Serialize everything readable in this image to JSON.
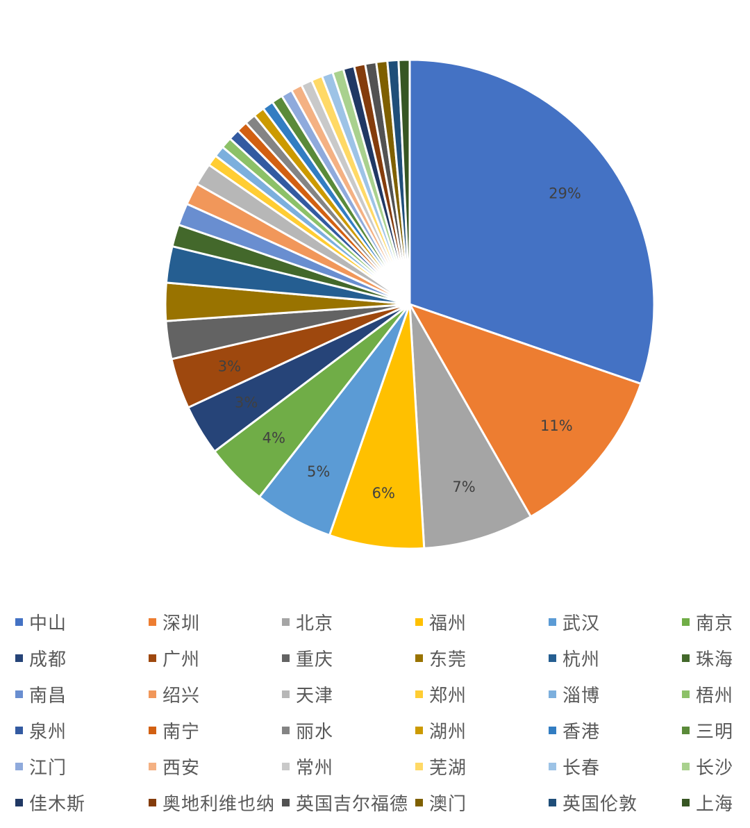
{
  "chart_data": {
    "type": "pie",
    "title": "",
    "start_angle_deg": 0,
    "direction": "clockwise",
    "legend_position": "bottom",
    "slices": [
      {
        "label": "中山",
        "value": 29,
        "color": "#4472C4",
        "value_label": "29%"
      },
      {
        "label": "深圳",
        "value": 11,
        "color": "#ED7D31",
        "value_label": "11%"
      },
      {
        "label": "北京",
        "value": 7,
        "color": "#A5A5A5",
        "value_label": "7%"
      },
      {
        "label": "福州",
        "value": 6,
        "color": "#FFC000",
        "value_label": "6%"
      },
      {
        "label": "武汉",
        "value": 5,
        "color": "#5B9BD5",
        "value_label": "5%"
      },
      {
        "label": "南京",
        "value": 4,
        "color": "#70AD47",
        "value_label": "4%"
      },
      {
        "label": "成都",
        "value": 3.2,
        "color": "#264478",
        "value_label": "3%"
      },
      {
        "label": "广州",
        "value": 3.2,
        "color": "#9E480E",
        "value_label": "3%"
      },
      {
        "label": "重庆",
        "value": 2.4,
        "color": "#636363",
        "value_label": ""
      },
      {
        "label": "东莞",
        "value": 2.4,
        "color": "#997300",
        "value_label": ""
      },
      {
        "label": "杭州",
        "value": 2.3,
        "color": "#255E91",
        "value_label": ""
      },
      {
        "label": "珠海",
        "value": 1.4,
        "color": "#43682B",
        "value_label": ""
      },
      {
        "label": "南昌",
        "value": 1.4,
        "color": "#698ED0",
        "value_label": ""
      },
      {
        "label": "绍兴",
        "value": 1.4,
        "color": "#F1975A",
        "value_label": ""
      },
      {
        "label": "天津",
        "value": 1.4,
        "color": "#B7B7B7",
        "value_label": ""
      },
      {
        "label": "郑州",
        "value": 0.7,
        "color": "#FFCD33",
        "value_label": ""
      },
      {
        "label": "淄博",
        "value": 0.7,
        "color": "#7CAFDD",
        "value_label": ""
      },
      {
        "label": "梧州",
        "value": 0.7,
        "color": "#8CC168",
        "value_label": ""
      },
      {
        "label": "泉州",
        "value": 0.7,
        "color": "#335AA1",
        "value_label": ""
      },
      {
        "label": "南宁",
        "value": 0.7,
        "color": "#D26012",
        "value_label": ""
      },
      {
        "label": "丽水",
        "value": 0.7,
        "color": "#848484",
        "value_label": ""
      },
      {
        "label": "湖州",
        "value": 0.7,
        "color": "#CC9A00",
        "value_label": ""
      },
      {
        "label": "香港",
        "value": 0.7,
        "color": "#327DC2",
        "value_label": ""
      },
      {
        "label": "三明",
        "value": 0.7,
        "color": "#5A8A39",
        "value_label": ""
      },
      {
        "label": "江门",
        "value": 0.7,
        "color": "#8FAADC",
        "value_label": ""
      },
      {
        "label": "西安",
        "value": 0.7,
        "color": "#F4B183",
        "value_label": ""
      },
      {
        "label": "常州",
        "value": 0.7,
        "color": "#C9C9C9",
        "value_label": ""
      },
      {
        "label": "芜湖",
        "value": 0.7,
        "color": "#FFD966",
        "value_label": ""
      },
      {
        "label": "长春",
        "value": 0.7,
        "color": "#9DC3E6",
        "value_label": ""
      },
      {
        "label": "长沙",
        "value": 0.7,
        "color": "#A9D18E",
        "value_label": ""
      },
      {
        "label": "佳木斯",
        "value": 0.7,
        "color": "#203864",
        "value_label": ""
      },
      {
        "label": "奥地利维也纳",
        "value": 0.7,
        "color": "#843C0C",
        "value_label": ""
      },
      {
        "label": "英国吉尔福德",
        "value": 0.7,
        "color": "#525252",
        "value_label": ""
      },
      {
        "label": "澳门",
        "value": 0.7,
        "color": "#7F6000",
        "value_label": ""
      },
      {
        "label": "英国伦敦",
        "value": 0.7,
        "color": "#1F4E79",
        "value_label": ""
      },
      {
        "label": "上海",
        "value": 0.7,
        "color": "#375623",
        "value_label": ""
      }
    ]
  }
}
